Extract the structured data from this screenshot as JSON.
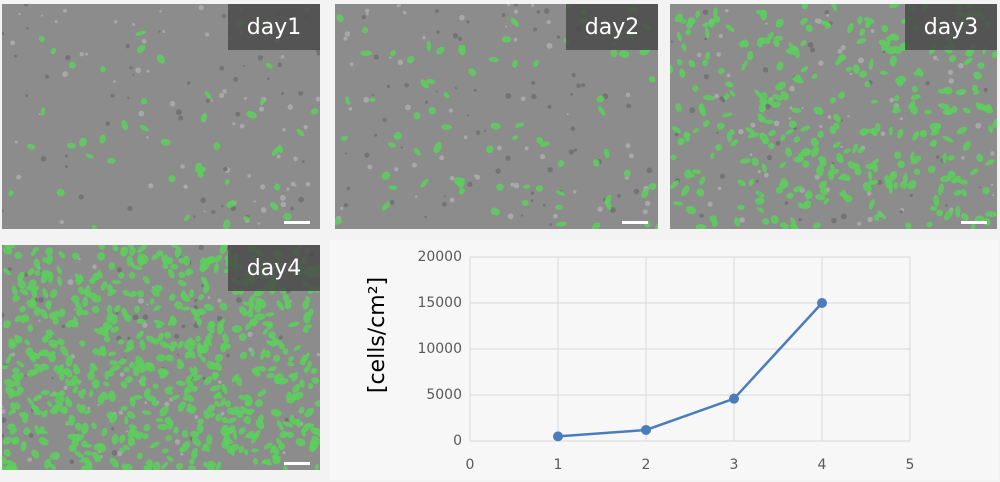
{
  "panels": [
    {
      "label": "day1"
    },
    {
      "label": "day2"
    },
    {
      "label": "day3"
    },
    {
      "label": "day4"
    }
  ],
  "chart_data": {
    "type": "line",
    "y_label": "[cells/cm²]",
    "x": [
      1,
      2,
      3,
      4
    ],
    "values": [
      500,
      1200,
      4600,
      15000
    ],
    "color": "#4a7ebb",
    "xlim": [
      0,
      5
    ],
    "xticks": [
      0,
      1,
      2,
      3,
      4,
      5
    ],
    "ylim": [
      0,
      20000
    ],
    "yticks": [
      0,
      5000,
      10000,
      15000,
      20000
    ],
    "grid": true
  }
}
